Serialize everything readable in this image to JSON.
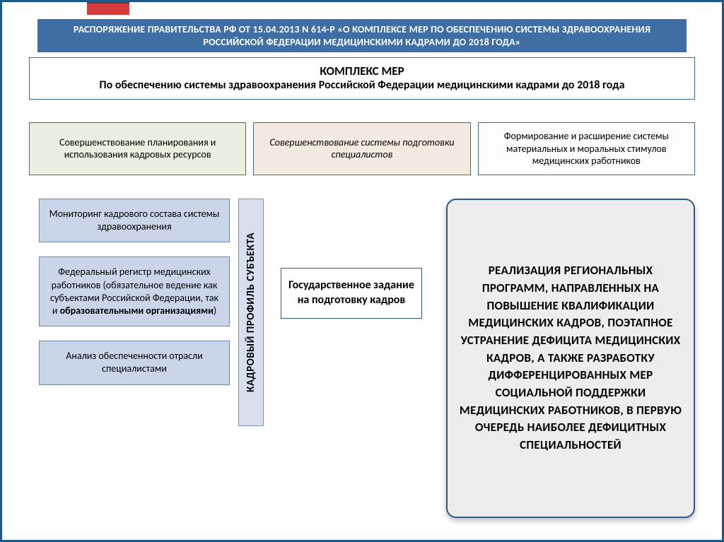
{
  "colors": {
    "frame_border": "#1a5a8a",
    "title_band_bg": "#3f6ea5",
    "title_band_text": "#ffffff",
    "red_tab": "#d63c3c",
    "box_border": "#3a6a9a",
    "col_a_bg": "#e9f0df",
    "col_b_bg": "#f5eae0",
    "col_c_bg": "#fdfdfd",
    "left_box_bg": "#c9d6ea",
    "left_box_border": "#6f86a6",
    "vlabel_bg": "#d7dfef",
    "vlabel_border": "#7f92b0",
    "right_bg": "#ededed",
    "right_border": "#2a5b8c"
  },
  "layout": {
    "type": "flowchart",
    "slide_w": 1024,
    "slide_h": 767
  },
  "title_band": "РАСПОРЯЖЕНИЕ ПРАВИТЕЛЬСТВА РФ ОТ 15.04.2013 N 614-Р «О КОМПЛЕКСЕ МЕР ПО ОБЕСПЕЧЕНИЮ СИСТЕМЫ ЗДРАВООХРАНЕНИЯ РОССИЙСКОЙ ФЕДЕРАЦИИ МЕДИЦИНСКИМИ КАДРАМИ ДО 2018 ГОДА»",
  "complex": {
    "heading": "КОМПЛЕКС МЕР",
    "sub": "По обеспечению системы здравоохранения Российской Федерации медицинскими кадрами до 2018 года"
  },
  "columns": {
    "a": "Совершенствование планирования и использования кадровых ресурсов",
    "b": "Совершенствование системы подготовки специалистов",
    "c": "Формирование и расширение системы материальных и моральных стимулов медицинских работников"
  },
  "left": {
    "box1": "Мониторинг кадрового состава системы здравоохранения",
    "box2_pre": "Федеральный регистр медицинских работников (обязательное ведение как субъектами Российской Федерации, так и ",
    "box2_bold": "образовательными организациями",
    "box2_post": ")",
    "box3": "Анализ обеспеченности отрасли специалистами"
  },
  "vertical_label": "КАДРОВЫЙ ПРОФИЛЬ СУБЪЕКТА",
  "center": "Государственное задание на подготовку кадров",
  "right": "РЕАЛИЗАЦИЯ РЕГИОНАЛЬНЫХ ПРОГРАММ, НАПРАВЛЕННЫХ НА ПОВЫШЕНИЕ КВАЛИФИКАЦИИ МЕДИЦИНСКИХ КАДРОВ, ПОЭТАПНОЕ УСТРАНЕНИЕ ДЕФИЦИТА МЕДИЦИНСКИХ КАДРОВ, А ТАКЖЕ РАЗРАБОТКУ ДИФФЕРЕНЦИРОВАННЫХ МЕР СОЦИАЛЬНОЙ ПОДДЕРЖКИ МЕДИЦИНСКИХ РАБОТНИКОВ, В ПЕРВУЮ ОЧЕРЕДЬ НАИБОЛЕЕ ДЕФИЦИТНЫХ СПЕЦИАЛЬНОСТЕЙ"
}
